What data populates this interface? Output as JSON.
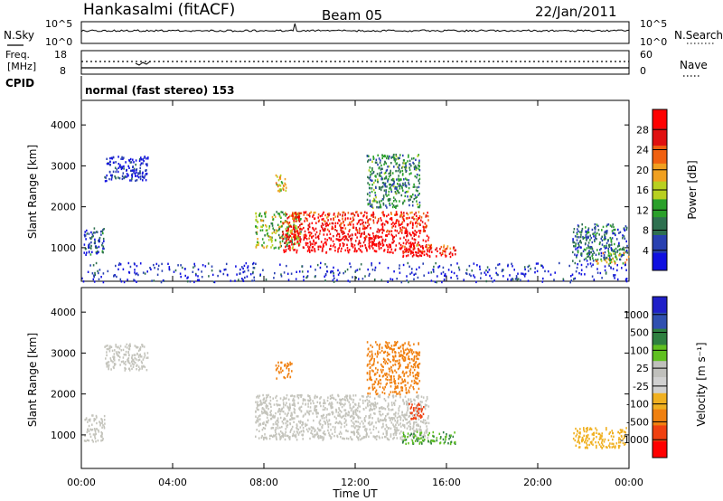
{
  "header": {
    "station": "Hankasalmi (fitACF)",
    "beam": "Beam 05",
    "date": "22/Jan/2011"
  },
  "strip_labels": {
    "nsky": "N.Sky",
    "nsearch": "N.Search",
    "nsky_top": "10^5",
    "nsky_bottom": "10^0",
    "nsearch_top": "10^5",
    "nsearch_bottom": "10^0",
    "freq_line1": "Freq.",
    "freq_line2": "[MHz]",
    "freq_top": "18",
    "freq_bottom": "8",
    "nave": "Nave",
    "nave_top": "60",
    "nave_bottom": "0",
    "cpid": "CPID",
    "cpid_value": "normal (fast stereo) 153"
  },
  "colors": {
    "power": [
      "#1010e0",
      "#2840b0",
      "#2e7050",
      "#2aa02a",
      "#b8d020",
      "#f0a020",
      "#f06010",
      "#e01010",
      "#ff0000"
    ],
    "velocity": [
      "#2020c8",
      "#3050b0",
      "#2e8040",
      "#60c020",
      "#c0c0bc",
      "#d0d0d0",
      "#f0b020",
      "#f08010",
      "#f04010",
      "#ff0000"
    ],
    "gray_scatter": "#c4c4bc"
  },
  "chart_data": [
    {
      "type": "heatmap",
      "name": "power",
      "xlabel": "",
      "ylabel": "Slant Range [km]",
      "xlim": [
        "00:00",
        "24:00"
      ],
      "ylim": [
        180,
        4600
      ],
      "yticks": [
        "1000",
        "2000",
        "3000",
        "4000"
      ],
      "colorbar": {
        "label": "Power [dB]",
        "ticks": [
          "4",
          "8",
          "12",
          "16",
          "20",
          "24",
          "28"
        ],
        "range": [
          0,
          32
        ]
      },
      "regions": [
        {
          "t0": 0.1,
          "t1": 1.0,
          "r0": 850,
          "r1": 1500,
          "level": 0.18
        },
        {
          "t0": 1.0,
          "t1": 2.9,
          "r0": 2650,
          "r1": 3250,
          "level": 0.1
        },
        {
          "t0": 7.6,
          "t1": 9.6,
          "r0": 1000,
          "r1": 1900,
          "level": 0.45
        },
        {
          "t0": 8.8,
          "t1": 15.2,
          "r0": 900,
          "r1": 1900,
          "level": 0.78
        },
        {
          "t0": 8.5,
          "t1": 9.0,
          "r0": 2400,
          "r1": 2800,
          "level": 0.6
        },
        {
          "t0": 12.5,
          "t1": 14.8,
          "r0": 2000,
          "r1": 3300,
          "level": 0.3
        },
        {
          "t0": 14.0,
          "t1": 16.4,
          "r0": 800,
          "r1": 1100,
          "level": 0.7
        },
        {
          "t0": 21.5,
          "t1": 23.9,
          "r0": 700,
          "r1": 1600,
          "level": 0.25
        },
        {
          "t0": 22.5,
          "t1": 24.0,
          "r0": 600,
          "r1": 900,
          "level": 0.55
        },
        {
          "t0": 0.0,
          "t1": 24.0,
          "r0": 180,
          "r1": 650,
          "level": 0.12
        }
      ]
    },
    {
      "type": "heatmap",
      "name": "velocity",
      "xlabel": "Time UT",
      "ylabel": "Slant Range [km]",
      "xlim": [
        "00:00",
        "24:00"
      ],
      "ylim": [
        180,
        4600
      ],
      "xticks": [
        "00:00",
        "04:00",
        "08:00",
        "12:00",
        "16:00",
        "20:00",
        "00:00"
      ],
      "yticks": [
        "1000",
        "2000",
        "3000",
        "4000"
      ],
      "colorbar": {
        "label": "Velocity [m s⁻¹]",
        "ticks": [
          "1000",
          "500",
          "100",
          "25",
          "-25",
          "-100",
          "-500",
          "-1000"
        ]
      },
      "regions": [
        {
          "t0": 0.1,
          "t1": 1.0,
          "r0": 850,
          "r1": 1500,
          "velocity": 0
        },
        {
          "t0": 1.0,
          "t1": 2.9,
          "r0": 2600,
          "r1": 3250,
          "velocity": 0
        },
        {
          "t0": 7.6,
          "t1": 15.2,
          "r0": 900,
          "r1": 2000,
          "velocity": 0
        },
        {
          "t0": 8.5,
          "t1": 9.2,
          "r0": 2400,
          "r1": 2800,
          "velocity": -300
        },
        {
          "t0": 12.5,
          "t1": 14.8,
          "r0": 2000,
          "r1": 3300,
          "velocity": -150
        },
        {
          "t0": 14.3,
          "t1": 15.0,
          "r0": 1400,
          "r1": 1800,
          "velocity": -600
        },
        {
          "t0": 14.0,
          "t1": 16.4,
          "r0": 800,
          "r1": 1100,
          "velocity": 60
        },
        {
          "t0": 21.5,
          "t1": 23.9,
          "r0": 700,
          "r1": 1200,
          "velocity": -60
        }
      ]
    }
  ]
}
